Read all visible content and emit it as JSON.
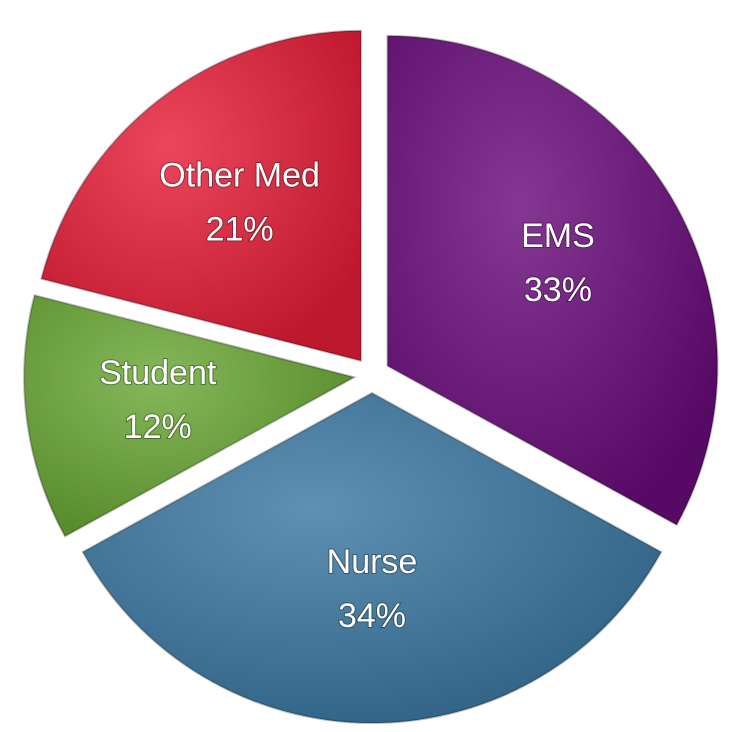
{
  "chart_data": {
    "type": "pie",
    "categories": [
      "EMS",
      "Nurse",
      "Student",
      "Other Med"
    ],
    "values": [
      33,
      34,
      12,
      21
    ],
    "value_labels": [
      "33%",
      "34%",
      "12%",
      "21%"
    ],
    "colors": [
      "#6a0b7c",
      "#3a78a2",
      "#6aa834",
      "#e81d38"
    ]
  }
}
